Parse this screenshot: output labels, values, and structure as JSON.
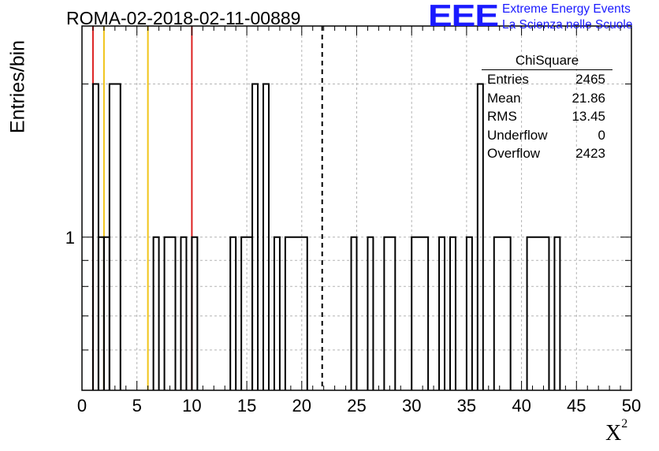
{
  "title": "ROMA-02-2018-02-11-00889",
  "logo": {
    "mark": "EEE",
    "line1": "Extreme Energy Events",
    "line2": "La Scienza nelle Scuole"
  },
  "stats_box": {
    "title": "ChiSquare",
    "rows": [
      {
        "label": "Entries",
        "value": "2465"
      },
      {
        "label": "Mean",
        "value": "21.86"
      },
      {
        "label": "RMS",
        "value": "13.45"
      },
      {
        "label": "Underflow",
        "value": "0"
      },
      {
        "label": "Overflow",
        "value": "2423"
      }
    ]
  },
  "chart_data": {
    "type": "histogram",
    "xlabel": "X",
    "xlabel_superscript": "2",
    "ylabel": "Entries/bin",
    "xlim": [
      0,
      50
    ],
    "ylim": [
      0.5,
      2.6
    ],
    "yscale": "log",
    "bin_width": 0.5,
    "xticks": [
      "0",
      "5",
      "10",
      "15",
      "20",
      "25",
      "30",
      "35",
      "40",
      "45",
      "50"
    ],
    "yticks": [
      "1"
    ],
    "grid": true,
    "bins": [
      {
        "x0": 1.0,
        "x1": 1.5,
        "count": 2
      },
      {
        "x0": 1.5,
        "x1": 2.0,
        "count": 1
      },
      {
        "x0": 2.0,
        "x1": 2.5,
        "count": 1
      },
      {
        "x0": 2.5,
        "x1": 3.5,
        "count": 2
      },
      {
        "x0": 6.5,
        "x1": 7.0,
        "count": 1
      },
      {
        "x0": 7.5,
        "x1": 8.5,
        "count": 1
      },
      {
        "x0": 9.0,
        "x1": 9.5,
        "count": 1
      },
      {
        "x0": 10.0,
        "x1": 10.5,
        "count": 1
      },
      {
        "x0": 13.5,
        "x1": 14.0,
        "count": 1
      },
      {
        "x0": 14.5,
        "x1": 15.5,
        "count": 1
      },
      {
        "x0": 15.5,
        "x1": 16.0,
        "count": 2
      },
      {
        "x0": 16.5,
        "x1": 17.0,
        "count": 2
      },
      {
        "x0": 17.5,
        "x1": 18.0,
        "count": 1
      },
      {
        "x0": 18.5,
        "x1": 20.5,
        "count": 1
      },
      {
        "x0": 24.5,
        "x1": 25.0,
        "count": 1
      },
      {
        "x0": 26.0,
        "x1": 26.5,
        "count": 1
      },
      {
        "x0": 27.5,
        "x1": 28.5,
        "count": 1
      },
      {
        "x0": 30.0,
        "x1": 31.5,
        "count": 1
      },
      {
        "x0": 32.5,
        "x1": 33.0,
        "count": 1
      },
      {
        "x0": 33.5,
        "x1": 34.0,
        "count": 1
      },
      {
        "x0": 35.0,
        "x1": 35.5,
        "count": 1
      },
      {
        "x0": 36.0,
        "x1": 36.5,
        "count": 2
      },
      {
        "x0": 37.5,
        "x1": 39.0,
        "count": 1
      },
      {
        "x0": 40.5,
        "x1": 42.5,
        "count": 1
      },
      {
        "x0": 43.0,
        "x1": 43.5,
        "count": 1
      }
    ],
    "reference_lines": [
      {
        "x": 1.0,
        "color": "#dd2222",
        "style": "solid"
      },
      {
        "x": 2.0,
        "color": "#f0c419",
        "style": "solid"
      },
      {
        "x": 6.0,
        "color": "#f0c419",
        "style": "solid"
      },
      {
        "x": 10.0,
        "color": "#dd2222",
        "style": "solid"
      },
      {
        "x": 21.86,
        "color": "#000000",
        "style": "dashed"
      }
    ]
  }
}
